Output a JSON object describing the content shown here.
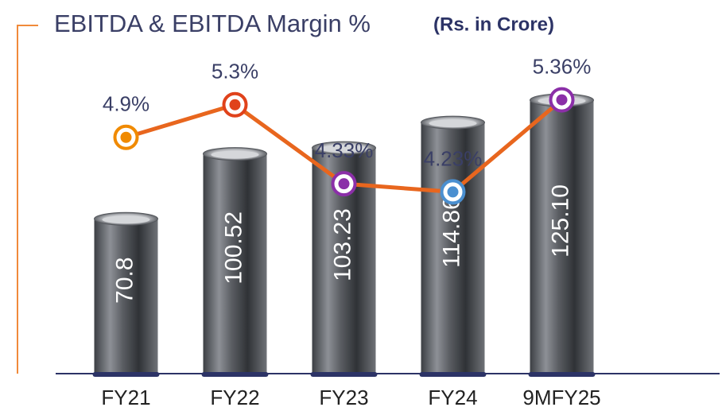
{
  "chart_data": {
    "type": "bar",
    "title": "EBITDA & EBITDA Margin %",
    "subtitle": "(Rs. in Crore)",
    "categories": [
      "FY21",
      "FY22",
      "FY23",
      "FY24",
      "9MFY25"
    ],
    "series": [
      {
        "name": "EBITDA",
        "type": "bar",
        "color": "#8a8d92",
        "values": [
          70.8,
          100.52,
          103.23,
          114.86,
          125.1
        ],
        "value_labels": [
          "70.8",
          "100.52",
          "103.23",
          "114.86",
          "125.10"
        ]
      },
      {
        "name": "EBITDA Margin %",
        "type": "line",
        "axis": "y2",
        "color": "#e8661e",
        "marker_colors": [
          "#f08a00",
          "#e0421b",
          "#8b2fa8",
          "#4a8fd0",
          "#8b2fa8"
        ],
        "values": [
          4.9,
          5.3,
          4.33,
          4.23,
          5.36
        ],
        "value_labels": [
          "4.9%",
          "5.3%",
          "4.33%",
          "4.23%",
          "5.36%"
        ]
      }
    ],
    "ylim": [
      0,
      160
    ],
    "y2lim": [
      2,
      6
    ]
  }
}
